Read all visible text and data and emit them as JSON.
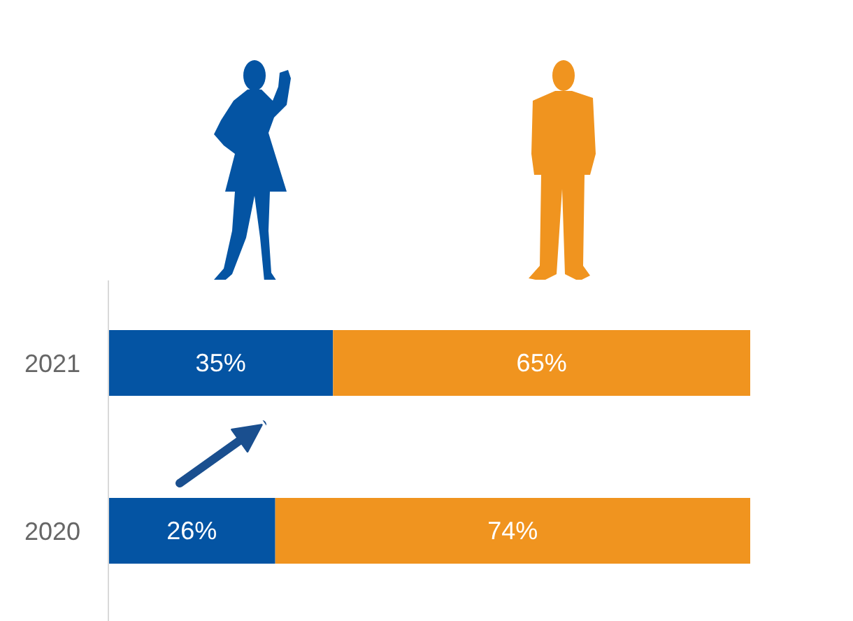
{
  "chart_data": {
    "type": "bar",
    "orientation": "horizontal",
    "stacked": true,
    "categories": [
      "2021",
      "2020"
    ],
    "series": [
      {
        "color": "#0454a3",
        "values": [
          35,
          26
        ],
        "value_labels": [
          "35%",
          "26%"
        ]
      },
      {
        "color": "#f0941f",
        "values": [
          65,
          74
        ],
        "value_labels": [
          "65%",
          "74%"
        ]
      }
    ],
    "xlim": [
      0,
      100
    ],
    "tick_labels": "y",
    "grid": false
  }
}
